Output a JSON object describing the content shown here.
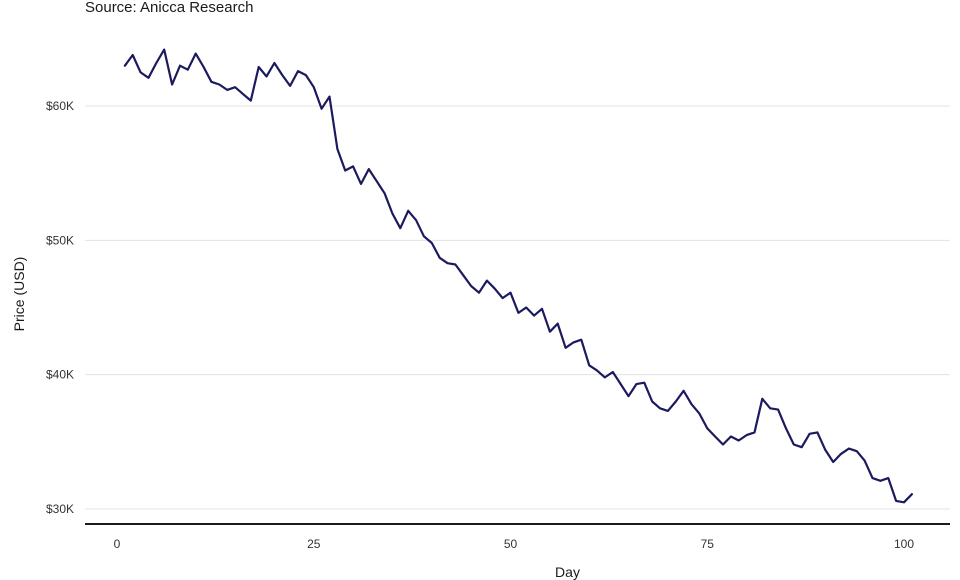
{
  "subtitle": "Source: Anicca Research",
  "chart_data": {
    "type": "line",
    "xlabel": "Day",
    "ylabel": "Price (USD)",
    "xlim": [
      0,
      101
    ],
    "ylim": [
      29000,
      64500
    ],
    "x_ticks": [
      0,
      25,
      50,
      75,
      100
    ],
    "x_tick_labels": [
      "0",
      "25",
      "50",
      "75",
      "100"
    ],
    "y_ticks": [
      30000,
      40000,
      50000,
      60000
    ],
    "y_tick_labels": [
      "$30K",
      "$40K",
      "$50K",
      "$60K"
    ],
    "grid": "horizontal",
    "legend": "none",
    "line_color": "#1c1a5e",
    "x": [
      1,
      2,
      3,
      4,
      5,
      6,
      7,
      8,
      9,
      10,
      11,
      12,
      13,
      14,
      15,
      16,
      17,
      18,
      19,
      20,
      21,
      22,
      23,
      24,
      25,
      26,
      27,
      28,
      29,
      30,
      31,
      32,
      33,
      34,
      35,
      36,
      37,
      38,
      39,
      40,
      41,
      42,
      43,
      44,
      45,
      46,
      47,
      48,
      49,
      50,
      51,
      52,
      53,
      54,
      55,
      56,
      57,
      58,
      59,
      60,
      61,
      62,
      63,
      64,
      65,
      66,
      67,
      68,
      69,
      70,
      71,
      72,
      73,
      74,
      75,
      76,
      77,
      78,
      79,
      80,
      81,
      82,
      83,
      84,
      85,
      86,
      87,
      88,
      89,
      90,
      91,
      92,
      93,
      94,
      95,
      96,
      97,
      98,
      99,
      100,
      101
    ],
    "y": [
      63000,
      63800,
      62500,
      62100,
      63200,
      64200,
      61600,
      63000,
      62700,
      63900,
      62900,
      61800,
      61600,
      61200,
      61400,
      60900,
      60400,
      62900,
      62200,
      63200,
      62300,
      61500,
      62600,
      62300,
      61400,
      59800,
      60700,
      56800,
      55200,
      55500,
      54200,
      55300,
      54400,
      53500,
      52000,
      50900,
      52200,
      51500,
      50300,
      49800,
      48700,
      48300,
      48200,
      47400,
      46600,
      46100,
      47000,
      46400,
      45700,
      46100,
      44600,
      45000,
      44400,
      44900,
      43200,
      43800,
      42000,
      42400,
      42600,
      40700,
      40300,
      39800,
      40200,
      39300,
      38400,
      39300,
      39400,
      38000,
      37500,
      37300,
      38000,
      38800,
      37800,
      37100,
      36000,
      35400,
      34800,
      35400,
      35100,
      35500,
      35700,
      38200,
      37500,
      37400,
      36000,
      34800,
      34600,
      35600,
      35700,
      34400,
      33500,
      34100,
      34500,
      34300,
      33600,
      32300,
      32100,
      32300,
      30600,
      30500,
      31100
    ]
  }
}
